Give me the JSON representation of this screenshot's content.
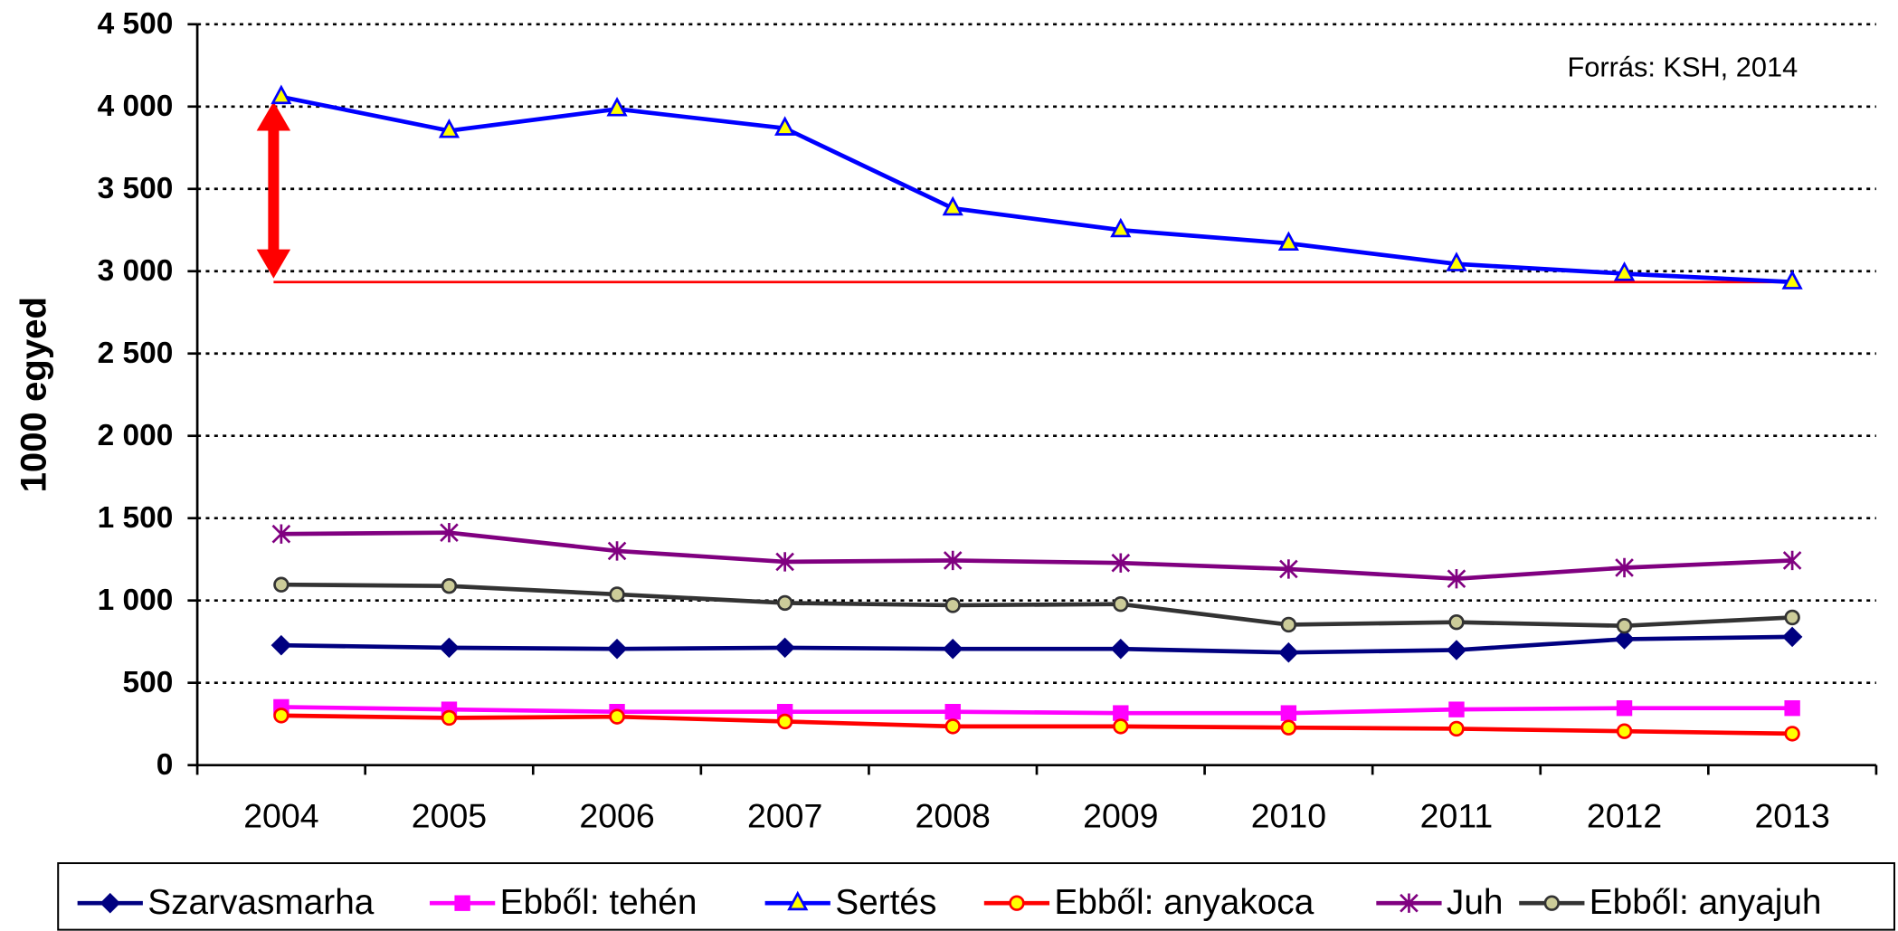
{
  "chart_data": {
    "type": "line",
    "y_label": "1000 egyed",
    "annotation": "Forrás: KSH, 2014",
    "categories": [
      "2004",
      "2005",
      "2006",
      "2007",
      "2008",
      "2009",
      "2010",
      "2011",
      "2012",
      "2013"
    ],
    "ylim": [
      0,
      4500
    ],
    "yticks": [
      0,
      500,
      {
        "value": 1000,
        "label": "1 000"
      },
      {
        "value": 1500,
        "label": "1 500"
      },
      {
        "value": 2000,
        "label": "2 000"
      },
      {
        "value": 2500,
        "label": "2 500"
      },
      {
        "value": 3000,
        "label": "3 000"
      },
      {
        "value": 3500,
        "label": "3 500"
      },
      {
        "value": 4000,
        "label": "4 000"
      },
      {
        "value": 4500,
        "label": "4 500"
      }
    ],
    "grid": true,
    "legend": "bottom",
    "series": [
      {
        "name": "Szarvasmarha",
        "color": "#000080",
        "marker": "diamond",
        "marker_fill": "#000080",
        "values": [
          728,
          713,
          706,
          713,
          706,
          706,
          684,
          699,
          765,
          779
        ]
      },
      {
        "name": "Ebből: tehén",
        "color": "#ff00ff",
        "marker": "square",
        "marker_fill": "#ff00ff",
        "values": [
          353,
          338,
          324,
          324,
          324,
          316,
          316,
          338,
          346,
          346
        ]
      },
      {
        "name": "Sertés",
        "color": "#0000ff",
        "marker": "triangle",
        "marker_fill": "#ffff00",
        "values": [
          4059,
          3853,
          3985,
          3868,
          3382,
          3250,
          3169,
          3044,
          2985,
          2934
        ]
      },
      {
        "name": "Ebből: anyakoca",
        "color": "#ff0000",
        "marker": "circle",
        "marker_fill": "#ffff00",
        "values": [
          301,
          287,
          294,
          265,
          235,
          235,
          228,
          221,
          206,
          191
        ]
      },
      {
        "name": "Juh",
        "color": "#800080",
        "marker": "star",
        "marker_fill": "#800080",
        "values": [
          1404,
          1412,
          1301,
          1235,
          1243,
          1228,
          1191,
          1132,
          1199,
          1243
        ]
      },
      {
        "name": "Ebből: anyajuh",
        "color": "#333333",
        "marker": "circle",
        "marker_fill": "#cccc99",
        "values": [
          1096,
          1088,
          1037,
          985,
          971,
          978,
          853,
          868,
          846,
          897
        ]
      }
    ]
  }
}
